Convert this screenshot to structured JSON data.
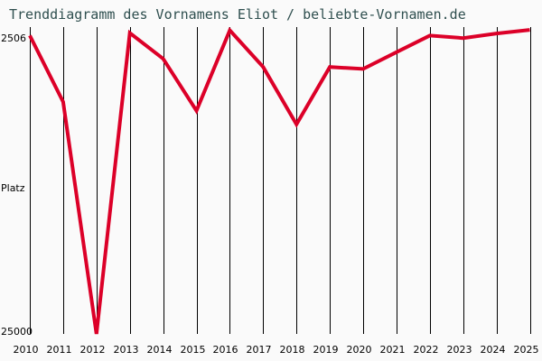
{
  "title": "Trenddiagramm des Vornamens Eliot / beliebte-Vornamen.de",
  "colors": {
    "line": "#dc0028",
    "grid": "#000000",
    "background": "#fafafa",
    "title": "#2f4f4f"
  },
  "chart_data": {
    "type": "line",
    "title": "Trenddiagramm des Vornamens Eliot / beliebte-Vornamen.de",
    "xlabel": "",
    "ylabel": "Platz",
    "y_inverted": true,
    "y_scale": "log",
    "ylim": [
      2506,
      25000
    ],
    "y_tick_labels": [
      "2506",
      "Platz",
      "25000"
    ],
    "categories": [
      "2010",
      "2011",
      "2012",
      "2013",
      "2014",
      "2015",
      "2016",
      "2017",
      "2018",
      "2019",
      "2020",
      "2021",
      "2022",
      "2023",
      "2024",
      "2025"
    ],
    "series": [
      {
        "name": "Eliot",
        "values": [
          2600,
          4300,
          25000,
          2550,
          3100,
          4600,
          2500,
          3300,
          5100,
          3300,
          3350,
          2950,
          2600,
          2650,
          2560,
          2490
        ]
      }
    ],
    "grid": {
      "vertical": true,
      "horizontal": false
    },
    "legend": null
  }
}
